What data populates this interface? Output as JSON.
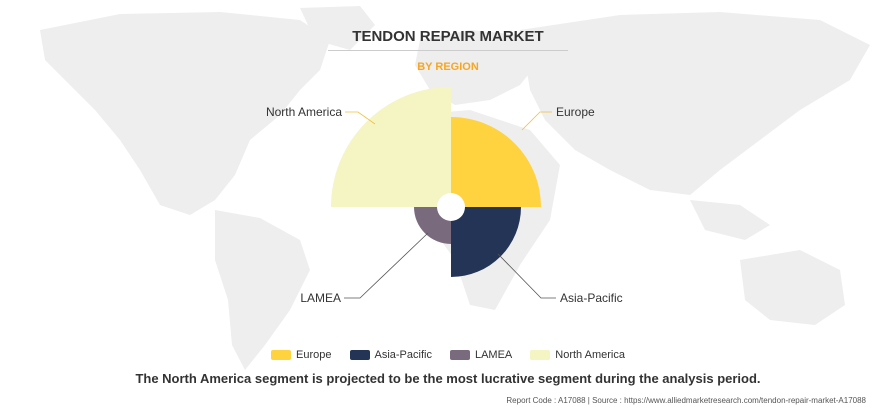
{
  "header": {
    "title": "TENDON REPAIR MARKET",
    "subtitle": "BY REGION"
  },
  "caption": "The North America segment is projected to be the most lucrative segment during the analysis period.",
  "footer": "Report Code : A17088  |  Source : https://www.alliedmarketresearch.com/tendon-repair-market-A17088",
  "colors": {
    "subtitle": "#f6a623",
    "map": "#eeeeee",
    "leader": "#f0c040",
    "leader_dark": "#555555"
  },
  "chart_data": {
    "type": "pie",
    "variant": "polar-area",
    "categories": [
      "Europe",
      "Asia-Pacific",
      "LAMEA",
      "North America"
    ],
    "values": [
      90,
      70,
      37,
      120
    ],
    "colors": [
      "#ffd23f",
      "#233457",
      "#7a6a7e",
      "#f5f4c3"
    ],
    "legend": [
      "Europe",
      "Asia-Pacific",
      "LAMEA",
      "North America"
    ],
    "legend_position": "bottom",
    "annotations": [
      "North America",
      "Europe",
      "LAMEA",
      "Asia-Pacific"
    ]
  }
}
